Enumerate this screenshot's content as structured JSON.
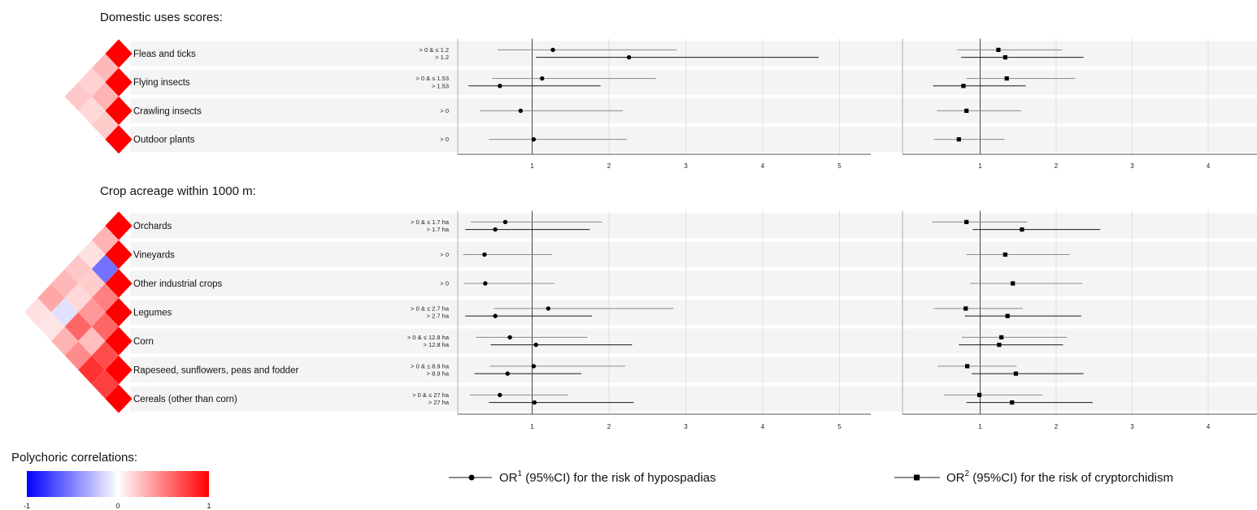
{
  "chart_data": {
    "type": "forest",
    "sections": [
      {
        "title": "Domestic uses scores:",
        "rows": [
          {
            "label": "Fleas and ticks",
            "estimates": [
              {
                "category": "> 0 & ≤ 1.2",
                "hyp": [
                  1.27,
                  0.55,
                  2.88
                ],
                "cry": [
                  1.24,
                  0.7,
                  2.08
                ]
              },
              {
                "category": "> 1.2",
                "hyp": [
                  2.26,
                  1.05,
                  4.73
                ],
                "cry": [
                  1.33,
                  0.75,
                  2.36
                ]
              }
            ]
          },
          {
            "label": "Flying insects",
            "estimates": [
              {
                "category": "> 0 & ≤ 1.53",
                "hyp": [
                  1.13,
                  0.48,
                  2.61
                ],
                "cry": [
                  1.35,
                  0.82,
                  2.25
                ]
              },
              {
                "category": "> 1.53",
                "hyp": [
                  0.58,
                  0.17,
                  1.89
                ],
                "cry": [
                  0.78,
                  0.38,
                  1.6
                ]
              }
            ]
          },
          {
            "label": "Crawling insects",
            "estimates": [
              {
                "category": "> 0",
                "hyp": [
                  0.85,
                  0.32,
                  2.18
                ],
                "cry": [
                  0.82,
                  0.43,
                  1.54
                ]
              }
            ]
          },
          {
            "label": "Outdoor plants",
            "estimates": [
              {
                "category": "> 0",
                "hyp": [
                  1.02,
                  0.44,
                  2.23
                ],
                "cry": [
                  0.72,
                  0.39,
                  1.32
                ]
              }
            ]
          }
        ],
        "correlations": [
          [
            1.0,
            0.28,
            0.18,
            0.22
          ],
          [
            0.28,
            1.0,
            0.3,
            0.15
          ],
          [
            0.18,
            0.3,
            1.0,
            0.2
          ],
          [
            0.22,
            0.15,
            0.2,
            1.0
          ]
        ]
      },
      {
        "title": "Crop acreage within 1000 m:",
        "rows": [
          {
            "label": "Orchards",
            "estimates": [
              {
                "category": "> 0 & ≤ 1.7 ha",
                "hyp": [
                  0.65,
                  0.2,
                  1.91
                ],
                "cry": [
                  0.82,
                  0.37,
                  1.62
                ]
              },
              {
                "category": "> 1.7 ha",
                "hyp": [
                  0.52,
                  0.13,
                  1.75
                ],
                "cry": [
                  1.55,
                  0.9,
                  2.58
                ]
              }
            ]
          },
          {
            "label": "Vineyards",
            "estimates": [
              {
                "category": "> 0",
                "hyp": [
                  0.38,
                  0.1,
                  1.26
                ],
                "cry": [
                  1.33,
                  0.82,
                  2.18
                ]
              }
            ]
          },
          {
            "label": "Other industrial crops",
            "estimates": [
              {
                "category": "> 0",
                "hyp": [
                  0.39,
                  0.11,
                  1.29
                ],
                "cry": [
                  1.43,
                  0.87,
                  2.34
                ]
              }
            ]
          },
          {
            "label": "Legumes",
            "estimates": [
              {
                "category": "> 0 & ≤ 2.7 ha",
                "hyp": [
                  1.21,
                  0.5,
                  2.84
                ],
                "cry": [
                  0.81,
                  0.39,
                  1.56
                ]
              },
              {
                "category": "> 2.7 ha",
                "hyp": [
                  0.52,
                  0.13,
                  1.78
                ],
                "cry": [
                  1.36,
                  0.8,
                  2.33
                ]
              }
            ]
          },
          {
            "label": "Corn",
            "estimates": [
              {
                "category": "> 0 & ≤ 12.8 ha",
                "hyp": [
                  0.71,
                  0.27,
                  1.72
                ],
                "cry": [
                  1.28,
                  0.76,
                  2.14
                ]
              },
              {
                "category": "> 12.8 ha",
                "hyp": [
                  1.05,
                  0.46,
                  2.3
                ],
                "cry": [
                  1.25,
                  0.72,
                  2.09
                ]
              }
            ]
          },
          {
            "label": "Rapeseed, sunflowers, peas and fodder",
            "estimates": [
              {
                "category": "> 0 & ≤ 8.9 ha",
                "hyp": [
                  1.02,
                  0.45,
                  2.21
                ],
                "cry": [
                  0.83,
                  0.44,
                  1.48
                ]
              },
              {
                "category": "> 8.9 ha",
                "hyp": [
                  0.68,
                  0.25,
                  1.64
                ],
                "cry": [
                  1.47,
                  0.89,
                  2.36
                ]
              }
            ]
          },
          {
            "label": "Cereals (other than corn)",
            "estimates": [
              {
                "category": "> 0 & ≤ 27 ha",
                "hyp": [
                  0.58,
                  0.19,
                  1.47
                ],
                "cry": [
                  0.99,
                  0.52,
                  1.82
                ]
              },
              {
                "category": "> 27 ha",
                "hyp": [
                  1.03,
                  0.44,
                  2.32
                ],
                "cry": [
                  1.42,
                  0.82,
                  2.48
                ]
              }
            ]
          }
        ],
        "correlations": [
          [
            1.0,
            0.3,
            0.12,
            0.22,
            0.28,
            0.35,
            0.12
          ],
          [
            0.3,
            1.0,
            -0.55,
            0.2,
            0.15,
            -0.12,
            0.1
          ],
          [
            0.12,
            -0.55,
            1.0,
            0.5,
            0.4,
            0.6,
            0.3
          ],
          [
            0.22,
            0.2,
            0.5,
            1.0,
            0.6,
            0.25,
            0.45
          ],
          [
            0.28,
            0.15,
            0.4,
            0.6,
            1.0,
            0.7,
            0.8
          ],
          [
            0.35,
            -0.12,
            0.6,
            0.25,
            0.7,
            1.0,
            0.75
          ],
          [
            0.12,
            0.1,
            0.3,
            0.45,
            0.8,
            0.75,
            1.0
          ]
        ]
      }
    ],
    "axes": {
      "hypospadias": {
        "xlim": [
          0,
          5.4
        ],
        "ticks": [
          "1",
          "2",
          "3",
          "4",
          "5"
        ]
      },
      "cryptorchidism": {
        "xlim": [
          0,
          4.7
        ],
        "ticks": [
          "1",
          "2",
          "3",
          "4"
        ]
      }
    },
    "reference_line": 1,
    "grid": true,
    "legend": {
      "hypospadias": {
        "pre": "OR",
        "sup": "1",
        "post": " (95%CI) for the risk of hypospadias",
        "marker": "circle"
      },
      "cryptorchidism": {
        "pre": "OR",
        "sup": "2",
        "post": " (95%CI) for the risk of cryptorchidism",
        "marker": "square"
      }
    },
    "colorbar": {
      "title": "Polychoric correlations:",
      "ticks": [
        "-1",
        "0",
        "1"
      ],
      "range": [
        -1,
        1
      ]
    },
    "colors": {
      "negative": "#0000ff",
      "positive": "#ff0000",
      "ci_line": "#1a1a1a",
      "grid": "#d9d9d9",
      "row_band": "#f4f4f4"
    }
  }
}
